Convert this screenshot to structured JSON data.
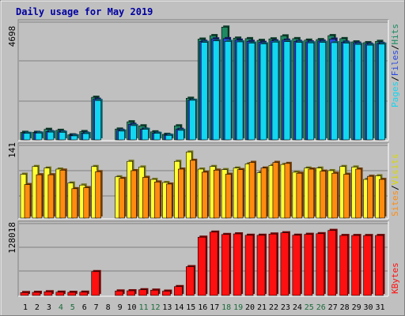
{
  "chart_data": [
    {
      "type": "bar",
      "title": "Daily usage for May 2019",
      "panel": "top",
      "ymax_label": "4698",
      "ymax": 4698,
      "categories": [
        "1",
        "2",
        "3",
        "4",
        "5",
        "6",
        "7",
        "8",
        "9",
        "10",
        "11",
        "12",
        "13",
        "14",
        "15",
        "16",
        "17",
        "18",
        "19",
        "20",
        "21",
        "22",
        "23",
        "24",
        "25",
        "26",
        "27",
        "28",
        "29",
        "30",
        "31"
      ],
      "series": [
        {
          "name": "Hits",
          "color": "#1e8a62",
          "values": [
            300,
            300,
            420,
            380,
            200,
            330,
            1700,
            0,
            430,
            720,
            560,
            320,
            220,
            560,
            1660,
            4020,
            4160,
            4500,
            4060,
            4040,
            3970,
            4030,
            4150,
            4040,
            3980,
            4000,
            4160,
            4040,
            3910,
            3880,
            3930
          ]
        },
        {
          "name": "Files",
          "color": "#2a48e0",
          "values": [
            260,
            280,
            330,
            320,
            180,
            270,
            1620,
            0,
            380,
            620,
            430,
            270,
            190,
            420,
            1580,
            3930,
            4030,
            4040,
            3980,
            3930,
            3890,
            3950,
            3980,
            3930,
            3910,
            3940,
            4020,
            3900,
            3860,
            3820,
            3850
          ]
        },
        {
          "name": "Pages",
          "color": "#13d6f0",
          "values": [
            260,
            270,
            310,
            300,
            160,
            250,
            1570,
            0,
            350,
            570,
            420,
            260,
            180,
            380,
            1580,
            3890,
            3950,
            3930,
            3910,
            3860,
            3830,
            3900,
            3920,
            3890,
            3870,
            3890,
            3880,
            3860,
            3810,
            3780,
            3820
          ]
        }
      ],
      "labels": {
        "hits": "Hits",
        "files": "Files",
        "pages": "Pages",
        "sep": "/"
      }
    },
    {
      "type": "bar",
      "panel": "middle",
      "ymax_label": "141",
      "ymax": 141,
      "categories": [
        "1",
        "2",
        "3",
        "4",
        "5",
        "6",
        "7",
        "8",
        "9",
        "10",
        "11",
        "12",
        "13",
        "14",
        "15",
        "16",
        "17",
        "18",
        "19",
        "20",
        "21",
        "22",
        "23",
        "24",
        "25",
        "26",
        "27",
        "28",
        "29",
        "30",
        "31"
      ],
      "series": [
        {
          "name": "Visits",
          "color": "#ffff33",
          "values": [
            85,
            100,
            97,
            95,
            68,
            64,
            100,
            0,
            80,
            110,
            99,
            75,
            69,
            110,
            128,
            95,
            100,
            94,
            97,
            105,
            88,
            102,
            104,
            89,
            97,
            97,
            92,
            100,
            99,
            75,
            82
          ]
        },
        {
          "name": "Sites",
          "color": "#ff8c10",
          "values": [
            65,
            84,
            84,
            93,
            57,
            59,
            90,
            0,
            77,
            92,
            79,
            70,
            66,
            95,
            112,
            89,
            93,
            85,
            94,
            108,
            97,
            108,
            106,
            87,
            95,
            91,
            87,
            85,
            95,
            81,
            75
          ]
        }
      ],
      "labels": {
        "visits": "Visits",
        "sites": "Sites",
        "sep": "/"
      }
    },
    {
      "type": "bar",
      "panel": "bottom",
      "ymax_label": "128018",
      "ymax": 128018,
      "categories": [
        "1",
        "2",
        "3",
        "4",
        "5",
        "6",
        "7",
        "8",
        "9",
        "10",
        "11",
        "12",
        "13",
        "14",
        "15",
        "16",
        "17",
        "18",
        "19",
        "20",
        "21",
        "22",
        "23",
        "24",
        "25",
        "26",
        "27",
        "28",
        "29",
        "30",
        "31"
      ],
      "series": [
        {
          "name": "KBytes",
          "color": "#ff1010",
          "values": [
            5200,
            5600,
            6600,
            5900,
            5600,
            5900,
            42500,
            0,
            8000,
            8400,
            10200,
            9500,
            7700,
            15800,
            51300,
            103800,
            112800,
            108600,
            109700,
            107200,
            107200,
            109400,
            111600,
            107300,
            108900,
            110000,
            115900,
            106800,
            106800,
            106700,
            106800
          ]
        }
      ],
      "labels": {
        "kbytes": "KBytes"
      }
    }
  ],
  "weekend_days": [
    4,
    5,
    11,
    12,
    18,
    19,
    25,
    26
  ],
  "colors": {
    "weekend": "#1a6b3a",
    "weekday": "#000000",
    "panel_bg": "#c0c0c0",
    "grid": "#808080"
  }
}
